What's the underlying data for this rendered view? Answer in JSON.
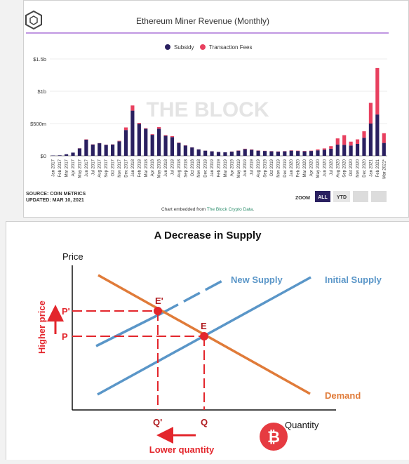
{
  "chart_data": [
    {
      "type": "bar",
      "stacked": true,
      "title": "Ethereum Miner Revenue (Monthly)",
      "categories": [
        "Jan 2017",
        "Feb 2017",
        "Mar 2017",
        "Apr 2017",
        "May 2017",
        "Jun 2017",
        "Jul 2017",
        "Aug 2017",
        "Sep 2017",
        "Oct 2017",
        "Nov 2017",
        "Dec 2017",
        "Jan 2018",
        "Feb 2018",
        "Mar 2018",
        "Apr 2018",
        "May 2018",
        "Jun 2018",
        "Jul 2018",
        "Aug 2018",
        "Sep 2018",
        "Oct 2018",
        "Nov 2018",
        "Dec 2018",
        "Jan 2019",
        "Feb 2019",
        "Mar 2019",
        "Apr 2019",
        "May 2019",
        "Jun 2019",
        "Jul 2019",
        "Aug 2019",
        "Sep 2019",
        "Oct 2019",
        "Nov 2019",
        "Dec 2019",
        "Jan 2020",
        "Feb 2020",
        "Mar 2020",
        "Apr 2020",
        "May 2020",
        "Jun 2020",
        "Jul 2020",
        "Aug 2020",
        "Sep 2020",
        "Oct 2020",
        "Nov 2020",
        "Dec 2020",
        "Jan 2021",
        "Feb 2021",
        "Mar 2021*"
      ],
      "series": [
        {
          "name": "Subsidy",
          "color": "#2a2060",
          "values": [
            5,
            8,
            25,
            50,
            115,
            250,
            175,
            195,
            170,
            175,
            225,
            400,
            700,
            495,
            420,
            325,
            420,
            310,
            290,
            200,
            160,
            130,
            100,
            80,
            70,
            60,
            55,
            65,
            80,
            105,
            95,
            80,
            75,
            70,
            65,
            70,
            80,
            75,
            70,
            75,
            85,
            95,
            110,
            175,
            170,
            160,
            185,
            280,
            500,
            640,
            200
          ]
        },
        {
          "name": "Transaction Fees",
          "color": "#e8405f",
          "values": [
            0,
            0,
            0,
            0,
            2,
            5,
            3,
            3,
            3,
            3,
            8,
            40,
            80,
            15,
            8,
            10,
            25,
            10,
            15,
            5,
            3,
            2,
            1,
            1,
            1,
            1,
            1,
            2,
            3,
            5,
            5,
            3,
            3,
            3,
            3,
            3,
            5,
            5,
            5,
            5,
            15,
            20,
            40,
            95,
            150,
            60,
            70,
            100,
            320,
            720,
            150
          ]
        }
      ],
      "ylim": [
        0,
        1500
      ],
      "yticks": [
        "$0",
        "$500m",
        "$1b",
        "$1.5b"
      ],
      "watermark": "THE BLOCK",
      "source": "SOURCE: COIN METRICS",
      "updated": "UPDATED: MAR 10, 2021",
      "zoom_label": "ZOOM",
      "zoom_all": "ALL",
      "zoom_ytd": "YTD",
      "embed_prefix": "Chart embedded from ",
      "embed_link": "The Block Crypto Data",
      "embed_suffix": ".",
      "accent": "#9b59d0",
      "active_button_color": "#2a2060",
      "link_color": "#2a8c6a"
    },
    {
      "type": "line",
      "title": "A Decrease in Supply",
      "ylabel": "Price",
      "xlabel": "Quantity",
      "series": [
        {
          "name": "Initial Supply",
          "color": "#5a96c8"
        },
        {
          "name": "New Supply",
          "color": "#5a96c8"
        },
        {
          "name": "Demand",
          "color": "#e07b39"
        }
      ],
      "points": [
        {
          "label": "E'",
          "color": "#e3262c"
        },
        {
          "label": "E",
          "color": "#e3262c"
        }
      ],
      "y_ticks": [
        "P'",
        "P"
      ],
      "x_ticks": [
        "Q'",
        "Q"
      ],
      "annotations": {
        "higher_price": "Higher price",
        "lower_quantity": "Lower quantity"
      },
      "annotation_color": "#e3262c"
    }
  ]
}
